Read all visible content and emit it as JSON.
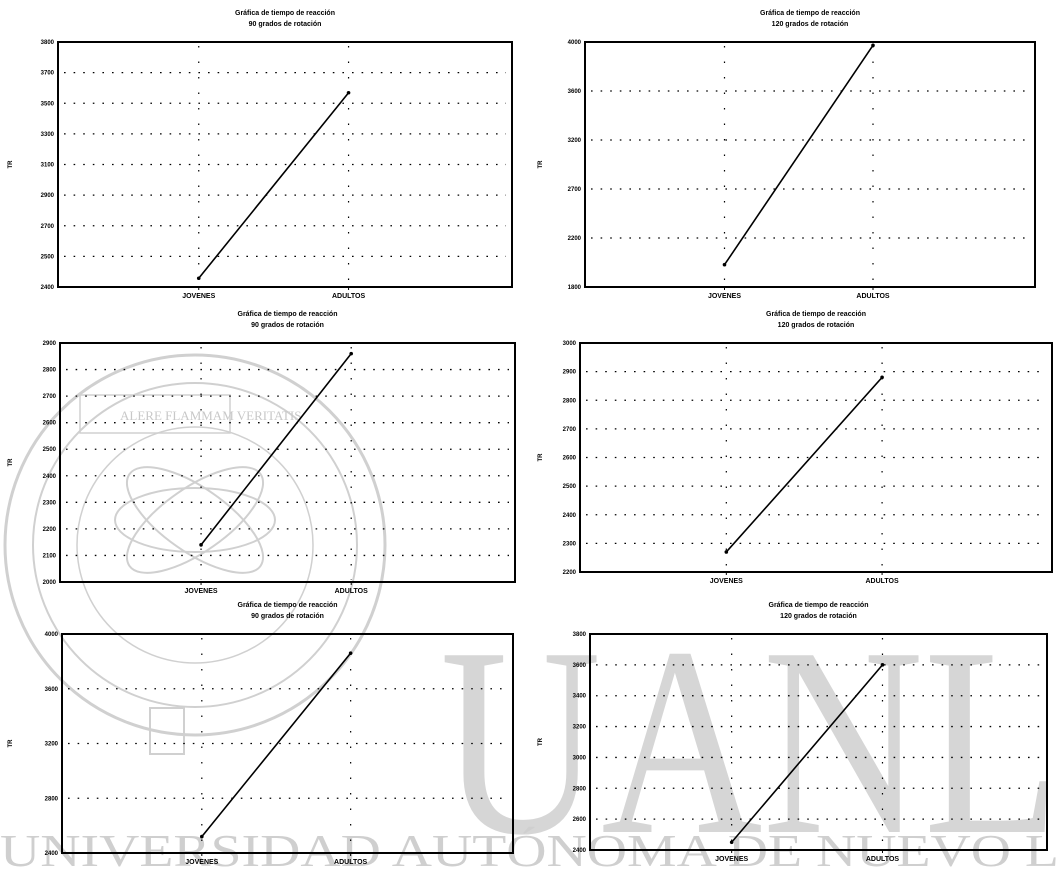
{
  "watermark": {
    "seal_text": "UNIVERSIDAD AUTÓNOMA DE NUEVO LEÓN",
    "motto": "ALERE FLAMMAM VERITATIS",
    "big_letters": "UANL",
    "footer": "UNIVERSIDAD AUTÓNOMA DE NUEVO L",
    "color": "#cfcfcf"
  },
  "chart_data": [
    {
      "type": "line",
      "title": "Gráfica de tiempo de reacción",
      "subtitle": "90 grados de rotación",
      "ylabel": "TR",
      "categories": [
        "JOVENES",
        "ADULTOS"
      ],
      "values": [
        2450,
        3510
      ],
      "ylim": [
        2400,
        3800
      ],
      "yticks": [
        "2400",
        "2500",
        "2700",
        "2900",
        "3100",
        "3300",
        "3500",
        "3700",
        "3800"
      ],
      "grid": true
    },
    {
      "type": "line",
      "title": "Gráfica de tiempo de reacción",
      "subtitle": "120 grados de rotación",
      "ylabel": "TR",
      "categories": [
        "JOVENES",
        "ADULTOS"
      ],
      "values": [
        2000,
        3970
      ],
      "ylim": [
        1800,
        4000
      ],
      "yticks": [
        "1800",
        "2200",
        "2700",
        "3200",
        "3600",
        "4000"
      ],
      "grid": true
    },
    {
      "type": "line",
      "title": "Gráfica de tiempo de reacción",
      "subtitle": "90 grados de rotación",
      "ylabel": "TR",
      "categories": [
        "JOVENES",
        "ADULTOS"
      ],
      "values": [
        2140,
        2860
      ],
      "ylim": [
        2000,
        2900
      ],
      "yticks": [
        "2000",
        "2100",
        "2200",
        "2300",
        "2400",
        "2500",
        "2600",
        "2700",
        "2800",
        "2900"
      ],
      "grid": true
    },
    {
      "type": "line",
      "title": "Gráfica de tiempo de reacción",
      "subtitle": "120 grados de rotación",
      "ylabel": "TR",
      "categories": [
        "JOVENES",
        "ADULTOS"
      ],
      "values": [
        2270,
        2880
      ],
      "ylim": [
        2200,
        3000
      ],
      "yticks": [
        "2200",
        "2300",
        "2400",
        "2500",
        "2600",
        "2700",
        "2800",
        "2900",
        "3000"
      ],
      "grid": true
    },
    {
      "type": "line",
      "title": "Gráfica de tiempo de reacción",
      "subtitle": "90 grados de rotación",
      "ylabel": "TR",
      "categories": [
        "JOVENES",
        "ADULTOS"
      ],
      "values": [
        2520,
        3860
      ],
      "ylim": [
        2400,
        4000
      ],
      "yticks": [
        "2400",
        "2800",
        "3200",
        "3600",
        "4000"
      ],
      "grid": true
    },
    {
      "type": "line",
      "title": "Gráfica de tiempo de reacción",
      "subtitle": "120 grados de rotación",
      "ylabel": "TR",
      "categories": [
        "JOVENES",
        "ADULTOS"
      ],
      "values": [
        2450,
        3600
      ],
      "ylim": [
        2400,
        3800
      ],
      "yticks": [
        "2400",
        "2600",
        "2800",
        "3000",
        "3200",
        "3400",
        "3600",
        "3800"
      ],
      "grid": true
    }
  ]
}
